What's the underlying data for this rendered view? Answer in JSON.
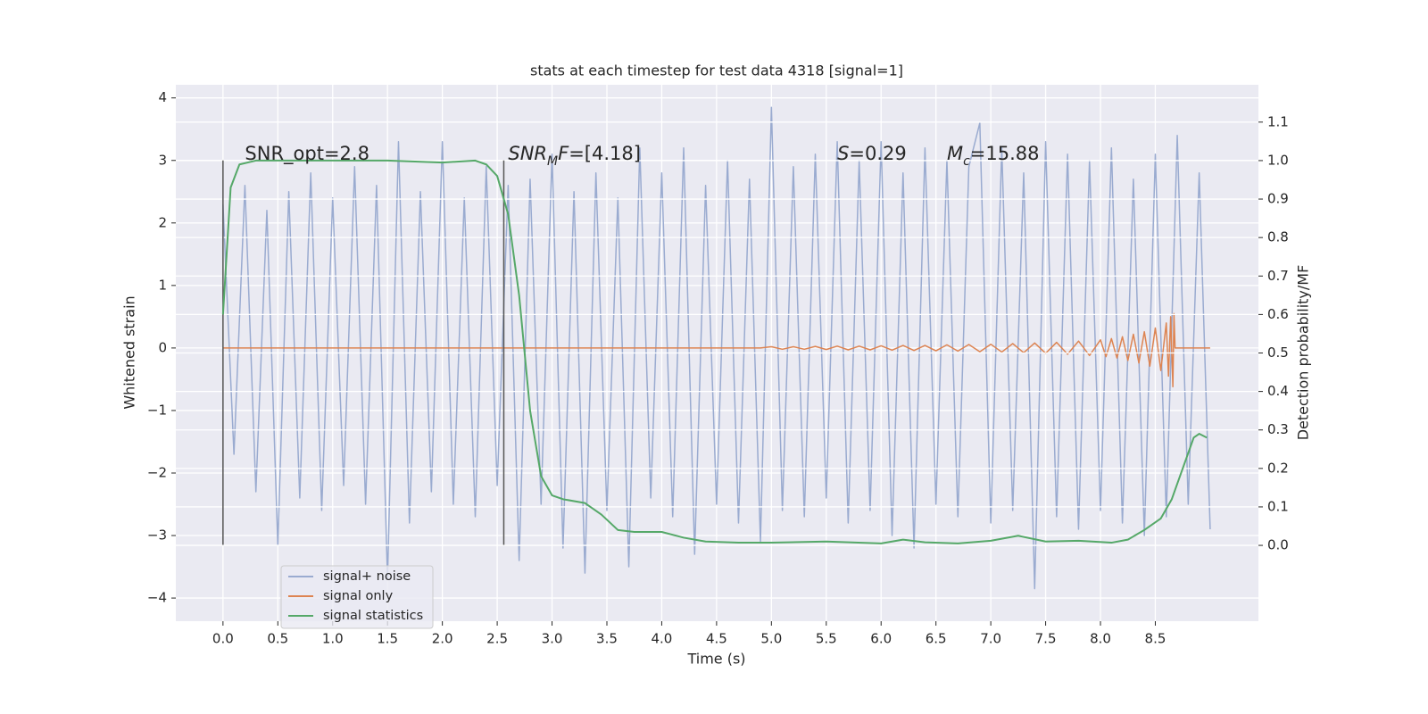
{
  "chart_data": {
    "type": "line",
    "title": "stats at each timestep for test data 4318 [signal=1]",
    "xlabel": "Time (s)",
    "ylabel": "Whitened strain",
    "y2label": "Detection probability/MF",
    "xlim": [
      -0.43,
      9.44
    ],
    "ylim": [
      -4.37,
      4.21
    ],
    "y2lim": [
      -0.197,
      1.197
    ],
    "xticks": [
      {
        "value": 0,
        "label": "0.0"
      },
      0.5,
      {
        "value": 1,
        "label": "1.0"
      },
      1.5,
      {
        "value": 2,
        "label": "2.0"
      },
      2.5,
      {
        "value": 3,
        "label": "3.0"
      },
      3.5,
      {
        "value": 4,
        "label": "4.0"
      },
      4.5,
      {
        "value": 5,
        "label": "5.0"
      },
      5.5,
      {
        "value": 6,
        "label": "6.0"
      },
      6.5,
      {
        "value": 7,
        "label": "7.0"
      },
      7.5,
      {
        "value": 8,
        "label": "8.0"
      },
      8.5
    ],
    "yticks": [
      {
        "value": -4,
        "label": "−4"
      },
      {
        "value": -3,
        "label": "−3"
      },
      {
        "value": -2,
        "label": "−2"
      },
      {
        "value": -1,
        "label": "−1"
      },
      0,
      1,
      2,
      3,
      4
    ],
    "y2ticks": [
      {
        "value": 0,
        "label": "0.0"
      },
      0.1,
      0.2,
      0.3,
      0.4,
      0.5,
      0.6,
      0.7,
      0.8,
      0.9,
      {
        "value": 1,
        "label": "1.0"
      },
      1.1
    ],
    "grid": true,
    "legend_loc": "lower left",
    "series": [
      {
        "name": "signal+ noise",
        "color": "#9aabd0",
        "x": [
          0,
          0.1,
          0.2,
          0.3,
          0.4,
          0.5,
          0.6,
          0.7,
          0.8,
          0.9,
          1,
          1.1,
          1.2,
          1.3,
          1.4,
          1.5,
          1.6,
          1.7,
          1.8,
          1.9,
          2,
          2.1,
          2.2,
          2.3,
          2.4,
          2.5,
          2.6,
          2.7,
          2.8,
          2.9,
          3,
          3.1,
          3.2,
          3.3,
          3.4,
          3.5,
          3.6,
          3.7,
          3.8,
          3.9,
          4,
          4.1,
          4.2,
          4.3,
          4.4,
          4.5,
          4.6,
          4.7,
          4.8,
          4.9,
          5,
          5.1,
          5.2,
          5.3,
          5.4,
          5.5,
          5.6,
          5.7,
          5.8,
          5.9,
          6,
          6.1,
          6.2,
          6.3,
          6.4,
          6.5,
          6.6,
          6.7,
          6.8,
          6.9,
          7,
          7.1,
          7.2,
          7.3,
          7.4,
          7.5,
          7.6,
          7.7,
          7.8,
          7.9,
          8,
          8.1,
          8.2,
          8.3,
          8.4,
          8.5,
          8.6,
          8.7,
          8.8,
          8.9,
          9
        ],
        "values": [
          2.3,
          -1.7,
          2.6,
          -2.3,
          2.2,
          -3.15,
          2.5,
          -2.4,
          2.8,
          -2.6,
          2.4,
          -2.2,
          2.9,
          -2.5,
          2.6,
          -3.7,
          3.3,
          -2.8,
          2.5,
          -2.3,
          3.3,
          -2.5,
          2.4,
          -2.7,
          2.9,
          -2.2,
          2.6,
          -3.4,
          2.7,
          -2.5,
          3.1,
          -3.2,
          2.5,
          -3.6,
          2.8,
          -2.6,
          2.4,
          -3.5,
          3.2,
          -2.4,
          2.8,
          -2.7,
          3.2,
          -3.3,
          2.6,
          -2.5,
          3.0,
          -2.8,
          2.7,
          -3.1,
          3.85,
          -2.6,
          2.9,
          -2.7,
          3.1,
          -2.4,
          3.3,
          -2.8,
          3.0,
          -2.6,
          3.3,
          -3.0,
          2.8,
          -3.2,
          3.2,
          -2.5,
          3.0,
          -2.7,
          2.9,
          3.6,
          -2.8,
          3.2,
          -2.6,
          2.8,
          -3.85,
          3.3,
          -2.7,
          3.1,
          -2.9,
          3.0,
          -2.6,
          3.2,
          -2.8,
          2.7,
          -3.0,
          3.1,
          -2.7,
          3.4,
          -2.5,
          2.8,
          -2.9
        ]
      },
      {
        "name": "signal only",
        "color": "#dd8452",
        "x": [
          0,
          4.9,
          5,
          5.1,
          5.2,
          5.3,
          5.4,
          5.5,
          5.6,
          5.7,
          5.8,
          5.9,
          6,
          6.1,
          6.2,
          6.3,
          6.4,
          6.5,
          6.6,
          6.7,
          6.8,
          6.9,
          7,
          7.1,
          7.2,
          7.3,
          7.4,
          7.5,
          7.6,
          7.7,
          7.8,
          7.9,
          8,
          8.05,
          8.1,
          8.15,
          8.2,
          8.25,
          8.3,
          8.35,
          8.4,
          8.45,
          8.5,
          8.55,
          8.6,
          8.62,
          8.64,
          8.66,
          8.67,
          8.68,
          9
        ],
        "values": [
          0,
          0,
          0.02,
          -0.02,
          0.02,
          -0.02,
          0.025,
          -0.025,
          0.03,
          -0.03,
          0.03,
          -0.03,
          0.035,
          -0.035,
          0.04,
          -0.04,
          0.04,
          -0.045,
          0.05,
          -0.05,
          0.055,
          -0.06,
          0.06,
          -0.065,
          0.07,
          -0.075,
          0.08,
          -0.085,
          0.09,
          -0.1,
          0.11,
          -0.12,
          0.13,
          -0.14,
          0.15,
          -0.16,
          0.18,
          -0.2,
          0.22,
          -0.24,
          0.26,
          -0.29,
          0.32,
          -0.36,
          0.4,
          -0.45,
          0.5,
          -0.62,
          0.55,
          0,
          0
        ]
      },
      {
        "name": "signal statistics",
        "color": "#55a868",
        "axis": "y2",
        "x": [
          0,
          0.07,
          0.15,
          0.3,
          1,
          1.5,
          2,
          2.3,
          2.4,
          2.5,
          2.6,
          2.7,
          2.8,
          2.9,
          3,
          3.1,
          3.3,
          3.45,
          3.6,
          3.75,
          4,
          4.2,
          4.4,
          4.7,
          5,
          5.5,
          6,
          6.2,
          6.4,
          6.7,
          7,
          7.25,
          7.5,
          7.8,
          8.1,
          8.25,
          8.4,
          8.55,
          8.65,
          8.75,
          8.85,
          8.9,
          8.97
        ],
        "values": [
          0.6,
          0.93,
          0.99,
          1,
          1,
          1,
          0.995,
          1,
          0.99,
          0.96,
          0.86,
          0.65,
          0.35,
          0.18,
          0.13,
          0.12,
          0.11,
          0.08,
          0.04,
          0.035,
          0.035,
          0.02,
          0.01,
          0.007,
          0.007,
          0.01,
          0.005,
          0.015,
          0.008,
          0.005,
          0.012,
          0.025,
          0.01,
          0.012,
          0.007,
          0.015,
          0.04,
          0.07,
          0.12,
          0.2,
          0.28,
          0.29,
          0.28
        ]
      }
    ],
    "vlines": [
      {
        "x": 0,
        "ymin": -3.15,
        "ymax": 3
      },
      {
        "x": 2.56,
        "ymin": -3.15,
        "ymax": 3
      }
    ],
    "annotations": [
      {
        "x": 0.2,
        "y": 3.1,
        "parts": [
          {
            "text": "SNR_opt=2.8"
          }
        ]
      },
      {
        "x": 2.6,
        "y": 3.1,
        "parts": [
          {
            "text": "SNR",
            "style": "italic"
          },
          {
            "text": "M",
            "style": "italic-sub"
          },
          {
            "text": "F",
            "style": "italic"
          },
          {
            "text": "=[4.18]"
          }
        ]
      },
      {
        "x": 5.6,
        "y": 3.1,
        "parts": [
          {
            "text": "S",
            "style": "italic"
          },
          {
            "text": "=0.29"
          }
        ]
      },
      {
        "x": 6.6,
        "y": 3.1,
        "parts": [
          {
            "text": "M",
            "style": "italic"
          },
          {
            "text": "c",
            "style": "italic-sub"
          },
          {
            "text": "=15.88"
          }
        ]
      }
    ]
  }
}
